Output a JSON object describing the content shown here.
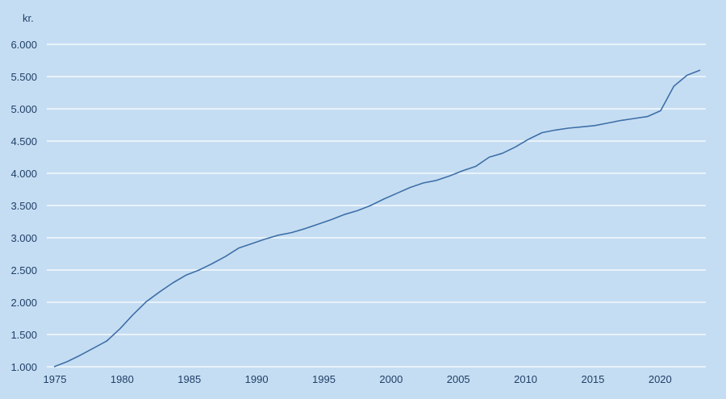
{
  "chart_data": {
    "type": "line",
    "unit_label": "kr.",
    "title": "",
    "xlabel": "",
    "ylabel": "",
    "xlim": [
      1975,
      2024
    ],
    "ylim": [
      1000,
      6000
    ],
    "x_ticks": [
      1975,
      1980,
      1985,
      1990,
      1995,
      2000,
      2005,
      2010,
      2015,
      2020
    ],
    "x_tick_labels": [
      "1975",
      "1980",
      "1985",
      "1990",
      "1995",
      "2000",
      "2005",
      "2010",
      "2015",
      "2020"
    ],
    "y_ticks": [
      1000,
      1500,
      2000,
      2500,
      3000,
      3500,
      4000,
      4500,
      5000,
      5500,
      6000
    ],
    "y_tick_labels": [
      "1.000",
      "1.500",
      "2.000",
      "2.500",
      "3.000",
      "3.500",
      "4.000",
      "4.500",
      "5.000",
      "5.500",
      "6.000"
    ],
    "grid": true,
    "legend": "none",
    "colors": {
      "background": "#c5ddf2",
      "grid": "#ffffff",
      "line": "#3e6fa8",
      "text": "#1f3f68"
    },
    "series": [
      {
        "x": [
          1975,
          1976,
          1977,
          1978,
          1979,
          1980,
          1981,
          1982,
          1983,
          1984,
          1985,
          1986,
          1987,
          1988,
          1989,
          1990,
          1991,
          1992,
          1993,
          1994,
          1995,
          1996,
          1997,
          1998,
          1999,
          2000,
          2001,
          2002,
          2003,
          2004,
          2005,
          2006,
          2007,
          2008,
          2009,
          2010,
          2011,
          2012,
          2013,
          2014,
          2015,
          2016,
          2017,
          2018,
          2019,
          2020,
          2021,
          2022,
          2023,
          2024
        ],
        "values": [
          1000,
          1080,
          1180,
          1290,
          1400,
          1590,
          1810,
          2010,
          2160,
          2300,
          2420,
          2500,
          2600,
          2710,
          2840,
          2910,
          2980,
          3040,
          3080,
          3140,
          3210,
          3280,
          3360,
          3420,
          3500,
          3600,
          3690,
          3780,
          3850,
          3890,
          3960,
          4040,
          4110,
          4250,
          4310,
          4410,
          4530,
          4630,
          4670,
          4700,
          4720,
          4740,
          4780,
          4820,
          4850,
          4880,
          4970,
          5350,
          5520,
          5600
        ]
      }
    ]
  }
}
